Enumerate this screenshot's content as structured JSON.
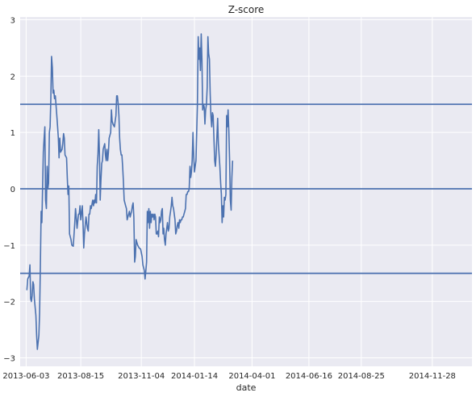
{
  "chart_data": {
    "type": "line",
    "title": "Z-score",
    "xlabel": "date",
    "ylabel": "",
    "x_ticks": [
      "2013-06-03",
      "2013-08-15",
      "2013-11-04",
      "2014-01-14",
      "2014-04-01",
      "2014-06-16",
      "2014-08-25",
      "2014-11-28"
    ],
    "y_ticks": [
      "−3",
      "−2",
      "−1",
      "0",
      "1",
      "2",
      "3"
    ],
    "xlim": [
      "2013-05-26",
      "2015-01-20"
    ],
    "ylim": [
      -3.15,
      3.05
    ],
    "grid": true,
    "line_color": "#4c72b0",
    "background_color": "#eaeaf2",
    "hlines": [
      1.5,
      0,
      -1.5
    ],
    "series": [
      {
        "values": [
          [
            "2013-06-04",
            -1.8
          ],
          [
            "2013-06-05",
            -1.6
          ],
          [
            "2013-06-07",
            -1.55
          ],
          [
            "2013-06-08",
            -1.35
          ],
          [
            "2013-06-09",
            -1.95
          ],
          [
            "2013-06-10",
            -2.0
          ],
          [
            "2013-06-11",
            -1.9
          ],
          [
            "2013-06-12",
            -1.65
          ],
          [
            "2013-06-13",
            -1.7
          ],
          [
            "2013-06-14",
            -1.95
          ],
          [
            "2013-06-16",
            -2.25
          ],
          [
            "2013-06-17",
            -2.6
          ],
          [
            "2013-06-18",
            -2.85
          ],
          [
            "2013-06-20",
            -2.6
          ],
          [
            "2013-06-21",
            -2.2
          ],
          [
            "2013-06-22",
            -1.4
          ],
          [
            "2013-06-23",
            -0.4
          ],
          [
            "2013-06-24",
            -0.6
          ],
          [
            "2013-06-26",
            0.65
          ],
          [
            "2013-06-27",
            0.9
          ],
          [
            "2013-06-28",
            1.1
          ],
          [
            "2013-06-29",
            -0.2
          ],
          [
            "2013-06-30",
            -0.35
          ],
          [
            "2013-07-01",
            0.4
          ],
          [
            "2013-07-02",
            0.0
          ],
          [
            "2013-07-03",
            0.1
          ],
          [
            "2013-07-04",
            1.0
          ],
          [
            "2013-07-05",
            1.1
          ],
          [
            "2013-07-06",
            1.6
          ],
          [
            "2013-07-07",
            2.35
          ],
          [
            "2013-07-08",
            2.15
          ],
          [
            "2013-07-09",
            1.7
          ],
          [
            "2013-07-10",
            1.75
          ],
          [
            "2013-07-11",
            1.6
          ],
          [
            "2013-07-12",
            1.65
          ],
          [
            "2013-07-14",
            1.3
          ],
          [
            "2013-07-15",
            1.1
          ],
          [
            "2013-07-16",
            0.9
          ],
          [
            "2013-07-17",
            0.55
          ],
          [
            "2013-07-18",
            0.9
          ],
          [
            "2013-07-19",
            0.65
          ],
          [
            "2013-07-21",
            0.7
          ],
          [
            "2013-07-22",
            0.8
          ],
          [
            "2013-07-23",
            0.98
          ],
          [
            "2013-07-24",
            0.9
          ],
          [
            "2013-07-25",
            0.6
          ],
          [
            "2013-07-27",
            0.55
          ],
          [
            "2013-07-28",
            0.2
          ],
          [
            "2013-07-29",
            -0.1
          ],
          [
            "2013-07-30",
            0.05
          ],
          [
            "2013-07-31",
            -0.8
          ],
          [
            "2013-08-02",
            -0.9
          ],
          [
            "2013-08-03",
            -1.0
          ],
          [
            "2013-08-05",
            -1.02
          ],
          [
            "2013-08-06",
            -0.8
          ],
          [
            "2013-08-07",
            -0.6
          ],
          [
            "2013-08-08",
            -0.35
          ],
          [
            "2013-08-09",
            -0.5
          ],
          [
            "2013-08-10",
            -0.7
          ],
          [
            "2013-08-12",
            -0.45
          ],
          [
            "2013-08-13",
            -0.45
          ],
          [
            "2013-08-14",
            -0.3
          ],
          [
            "2013-08-15",
            -0.55
          ],
          [
            "2013-08-17",
            -0.3
          ],
          [
            "2013-08-18",
            -0.6
          ],
          [
            "2013-08-19",
            -1.05
          ],
          [
            "2013-08-20",
            -0.8
          ],
          [
            "2013-08-22",
            -0.5
          ],
          [
            "2013-08-24",
            -0.7
          ],
          [
            "2013-08-25",
            -0.75
          ],
          [
            "2013-08-26",
            -0.45
          ],
          [
            "2013-08-27",
            -0.45
          ],
          [
            "2013-08-28",
            -0.3
          ],
          [
            "2013-08-29",
            -0.35
          ],
          [
            "2013-08-31",
            -0.2
          ],
          [
            "2013-09-01",
            -0.3
          ],
          [
            "2013-09-02",
            -0.2
          ],
          [
            "2013-09-03",
            -0.25
          ],
          [
            "2013-09-04",
            -0.1
          ],
          [
            "2013-09-05",
            -0.25
          ],
          [
            "2013-09-06",
            0.4
          ],
          [
            "2013-09-07",
            0.6
          ],
          [
            "2013-09-08",
            1.05
          ],
          [
            "2013-09-09",
            0.6
          ],
          [
            "2013-09-10",
            -0.2
          ],
          [
            "2013-09-11",
            0.15
          ],
          [
            "2013-09-12",
            0.45
          ],
          [
            "2013-09-13",
            0.5
          ],
          [
            "2013-09-14",
            0.7
          ],
          [
            "2013-09-15",
            0.75
          ],
          [
            "2013-09-16",
            0.8
          ],
          [
            "2013-09-17",
            0.6
          ],
          [
            "2013-09-18",
            0.5
          ],
          [
            "2013-09-19",
            0.7
          ],
          [
            "2013-09-20",
            0.5
          ],
          [
            "2013-09-21",
            0.65
          ],
          [
            "2013-09-22",
            0.9
          ],
          [
            "2013-09-24",
            1.0
          ],
          [
            "2013-09-25",
            1.4
          ],
          [
            "2013-09-26",
            1.2
          ],
          [
            "2013-09-27",
            1.15
          ],
          [
            "2013-09-29",
            1.1
          ],
          [
            "2013-10-01",
            1.3
          ],
          [
            "2013-10-02",
            1.65
          ],
          [
            "2013-10-03",
            1.65
          ],
          [
            "2013-10-04",
            1.5
          ],
          [
            "2013-10-05",
            1.3
          ],
          [
            "2013-10-06",
            0.9
          ],
          [
            "2013-10-07",
            0.7
          ],
          [
            "2013-10-08",
            0.6
          ],
          [
            "2013-10-09",
            0.6
          ],
          [
            "2013-10-10",
            0.4
          ],
          [
            "2013-10-11",
            0.15
          ],
          [
            "2013-10-12",
            -0.2
          ],
          [
            "2013-10-14",
            -0.3
          ],
          [
            "2013-10-15",
            -0.35
          ],
          [
            "2013-10-16",
            -0.55
          ],
          [
            "2013-10-17",
            -0.5
          ],
          [
            "2013-10-19",
            -0.4
          ],
          [
            "2013-10-20",
            -0.5
          ],
          [
            "2013-10-22",
            -0.4
          ],
          [
            "2013-10-23",
            -0.3
          ],
          [
            "2013-10-24",
            -0.25
          ],
          [
            "2013-10-25",
            -0.5
          ],
          [
            "2013-10-26",
            -1.3
          ],
          [
            "2013-10-27",
            -1.2
          ],
          [
            "2013-10-28",
            -0.9
          ],
          [
            "2013-10-30",
            -1.0
          ],
          [
            "2013-11-01",
            -1.05
          ],
          [
            "2013-11-03",
            -1.07
          ],
          [
            "2013-11-05",
            -1.2
          ],
          [
            "2013-11-06",
            -1.35
          ],
          [
            "2013-11-07",
            -1.4
          ],
          [
            "2013-11-08",
            -1.45
          ],
          [
            "2013-11-09",
            -1.6
          ],
          [
            "2013-11-10",
            -1.45
          ],
          [
            "2013-11-11",
            -1.3
          ],
          [
            "2013-11-12",
            -0.4
          ],
          [
            "2013-11-13",
            -0.6
          ],
          [
            "2013-11-14",
            -0.35
          ],
          [
            "2013-11-15",
            -0.7
          ],
          [
            "2013-11-16",
            -0.4
          ],
          [
            "2013-11-17",
            -0.6
          ],
          [
            "2013-11-18",
            -0.45
          ],
          [
            "2013-11-19",
            -0.5
          ],
          [
            "2013-11-20",
            -0.45
          ],
          [
            "2013-11-21",
            -0.55
          ],
          [
            "2013-11-22",
            -0.45
          ],
          [
            "2013-11-23",
            -0.5
          ],
          [
            "2013-11-24",
            -0.8
          ],
          [
            "2013-11-25",
            -0.8
          ],
          [
            "2013-11-26",
            -0.75
          ],
          [
            "2013-11-27",
            -0.85
          ],
          [
            "2013-11-28",
            -0.5
          ],
          [
            "2013-11-29",
            -0.6
          ],
          [
            "2013-11-30",
            -0.55
          ],
          [
            "2013-12-01",
            -0.4
          ],
          [
            "2013-12-02",
            -0.35
          ],
          [
            "2013-12-03",
            -0.8
          ],
          [
            "2013-12-04",
            -0.7
          ],
          [
            "2013-12-05",
            -0.9
          ],
          [
            "2013-12-06",
            -1.0
          ],
          [
            "2013-12-07",
            -0.8
          ],
          [
            "2013-12-08",
            -0.7
          ],
          [
            "2013-12-09",
            -0.6
          ],
          [
            "2013-12-10",
            -0.75
          ],
          [
            "2013-12-11",
            -0.7
          ],
          [
            "2013-12-12",
            -0.5
          ],
          [
            "2013-12-13",
            -0.4
          ],
          [
            "2013-12-14",
            -0.3
          ],
          [
            "2013-12-15",
            -0.15
          ],
          [
            "2013-12-16",
            -0.3
          ],
          [
            "2013-12-17",
            -0.35
          ],
          [
            "2013-12-18",
            -0.45
          ],
          [
            "2013-12-19",
            -0.55
          ],
          [
            "2013-12-20",
            -0.8
          ],
          [
            "2013-12-21",
            -0.75
          ],
          [
            "2013-12-22",
            -0.65
          ],
          [
            "2013-12-23",
            -0.6
          ],
          [
            "2013-12-24",
            -0.7
          ],
          [
            "2013-12-25",
            -0.55
          ],
          [
            "2013-12-26",
            -0.6
          ],
          [
            "2013-12-27",
            -0.55
          ],
          [
            "2013-12-28",
            -0.55
          ],
          [
            "2013-12-29",
            -0.5
          ],
          [
            "2013-12-30",
            -0.5
          ],
          [
            "2014-01-01",
            -0.4
          ],
          [
            "2014-01-02",
            -0.35
          ],
          [
            "2014-01-03",
            -0.1
          ],
          [
            "2014-01-04",
            -0.1
          ],
          [
            "2014-01-05",
            -0.05
          ],
          [
            "2014-01-06",
            -0.05
          ],
          [
            "2014-01-07",
            0.0
          ],
          [
            "2014-01-08",
            0.4
          ],
          [
            "2014-01-09",
            0.2
          ],
          [
            "2014-01-10",
            0.3
          ],
          [
            "2014-01-11",
            0.5
          ],
          [
            "2014-01-12",
            1.0
          ],
          [
            "2014-01-13",
            0.6
          ],
          [
            "2014-01-14",
            0.3
          ],
          [
            "2014-01-16",
            0.5
          ],
          [
            "2014-01-17",
            1.0
          ],
          [
            "2014-01-18",
            1.5
          ],
          [
            "2014-01-19",
            2.7
          ],
          [
            "2014-01-20",
            2.3
          ],
          [
            "2014-01-21",
            2.5
          ],
          [
            "2014-01-22",
            2.1
          ],
          [
            "2014-01-23",
            2.75
          ],
          [
            "2014-01-24",
            2.3
          ],
          [
            "2014-01-25",
            1.4
          ],
          [
            "2014-01-26",
            1.5
          ],
          [
            "2014-01-27",
            1.45
          ],
          [
            "2014-01-28",
            1.15
          ],
          [
            "2014-01-29",
            1.4
          ],
          [
            "2014-01-30",
            1.5
          ],
          [
            "2014-01-31",
            1.8
          ],
          [
            "2014-02-01",
            2.7
          ],
          [
            "2014-02-02",
            2.4
          ],
          [
            "2014-02-03",
            2.3
          ],
          [
            "2014-02-04",
            1.7
          ],
          [
            "2014-02-05",
            1.3
          ],
          [
            "2014-02-06",
            1.1
          ],
          [
            "2014-02-07",
            1.35
          ],
          [
            "2014-02-08",
            1.3
          ],
          [
            "2014-02-10",
            0.5
          ],
          [
            "2014-02-11",
            0.4
          ],
          [
            "2014-02-12",
            0.6
          ],
          [
            "2014-02-13",
            0.9
          ],
          [
            "2014-02-14",
            1.25
          ],
          [
            "2014-02-15",
            0.8
          ],
          [
            "2014-02-16",
            0.6
          ],
          [
            "2014-02-17",
            0.4
          ],
          [
            "2014-02-18",
            0.1
          ],
          [
            "2014-02-19",
            -0.1
          ],
          [
            "2014-02-20",
            -0.6
          ],
          [
            "2014-02-21",
            -0.3
          ],
          [
            "2014-02-22",
            -0.5
          ],
          [
            "2014-02-23",
            -0.15
          ],
          [
            "2014-02-24",
            -0.2
          ],
          [
            "2014-02-25",
            -0.1
          ],
          [
            "2014-02-26",
            1.3
          ],
          [
            "2014-02-27",
            1.1
          ],
          [
            "2014-02-28",
            1.4
          ],
          [
            "2014-03-01",
            1.0
          ],
          [
            "2014-03-02",
            0.5
          ],
          [
            "2014-03-03",
            -0.2
          ],
          [
            "2014-03-04",
            -0.38
          ],
          [
            "2014-03-05",
            0.2
          ],
          [
            "2014-03-06",
            0.5
          ]
        ]
      }
    ]
  }
}
